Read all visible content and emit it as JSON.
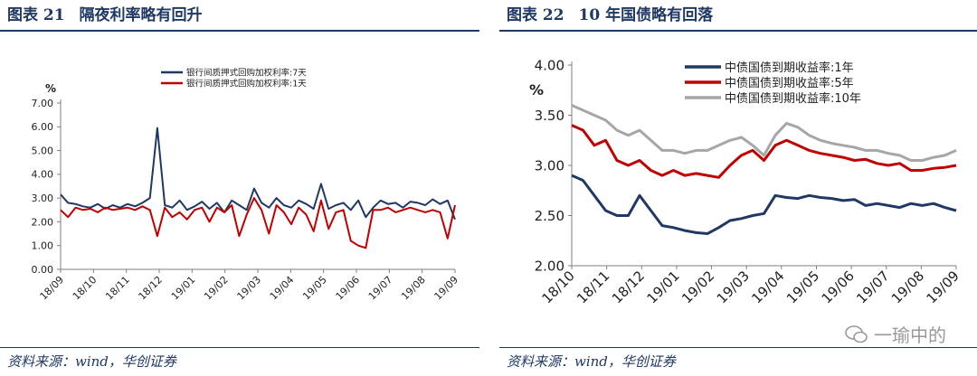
{
  "charts": [
    {
      "figure_label": "图表 21",
      "figure_title": "隔夜利率略有回升",
      "source": "资料来源：wind，华创证券",
      "unit_label": "%",
      "y_ticks": [
        "0.00",
        "1.00",
        "2.00",
        "3.00",
        "4.00",
        "5.00",
        "6.00",
        "7.00"
      ],
      "x_ticks": [
        "18/09",
        "18/10",
        "18/11",
        "18/12",
        "19/01",
        "19/02",
        "19/03",
        "19/04",
        "19/05",
        "19/06",
        "19/07",
        "19/08",
        "19/09"
      ],
      "legend": [
        {
          "label": "银行间质押式回购加权利率:7天",
          "color": "#1f3864"
        },
        {
          "label": "银行间质押式回购加权利率:1天",
          "color": "#c00000"
        }
      ]
    },
    {
      "figure_label": "图表 22",
      "figure_title": "10 年国债略有回落",
      "source": "资料来源：wind，华创证券",
      "unit_label": "%",
      "y_ticks": [
        "2.00",
        "2.50",
        "3.00",
        "3.50",
        "4.00"
      ],
      "x_ticks": [
        "18/10",
        "18/11",
        "18/12",
        "19/01",
        "19/02",
        "19/03",
        "19/04",
        "19/05",
        "19/06",
        "19/07",
        "19/08",
        "19/09"
      ],
      "legend": [
        {
          "label": "中债国债到期收益率:1年",
          "color": "#1f3864"
        },
        {
          "label": "中债国债到期收益率:5年",
          "color": "#c00000"
        },
        {
          "label": "中债国债到期收益率:10年",
          "color": "#a6a6a6"
        }
      ]
    }
  ],
  "watermark": "一瑜中的",
  "chart_data": [
    {
      "type": "line",
      "ylim": [
        0,
        7
      ],
      "x": [
        "18/09",
        "18/09",
        "18/09",
        "18/10",
        "18/10",
        "18/10",
        "18/10",
        "18/11",
        "18/11",
        "18/11",
        "18/11",
        "18/11",
        "18/12",
        "18/12",
        "18/12",
        "18/12",
        "19/01",
        "19/01",
        "19/01",
        "19/01",
        "19/01",
        "19/02",
        "19/02",
        "19/02",
        "19/02",
        "19/03",
        "19/03",
        "19/03",
        "19/03",
        "19/03",
        "19/04",
        "19/04",
        "19/04",
        "19/04",
        "19/05",
        "19/05",
        "19/05",
        "19/05",
        "19/05",
        "19/06",
        "19/06",
        "19/06",
        "19/06",
        "19/07",
        "19/07",
        "19/07",
        "19/07",
        "19/07",
        "19/08",
        "19/08",
        "19/08",
        "19/08",
        "19/09",
        "19/09"
      ],
      "series": [
        {
          "name": "银行间质押式回购加权利率:7天",
          "values": [
            3.15,
            2.8,
            2.75,
            2.65,
            2.6,
            2.75,
            2.55,
            2.7,
            2.6,
            2.75,
            2.65,
            2.8,
            3.0,
            5.95,
            2.7,
            2.6,
            2.9,
            2.5,
            2.65,
            2.85,
            2.55,
            2.8,
            2.4,
            2.9,
            2.7,
            2.5,
            3.4,
            2.8,
            2.6,
            3.0,
            2.7,
            2.6,
            2.9,
            2.75,
            2.55,
            3.6,
            2.55,
            2.7,
            2.8,
            2.5,
            2.9,
            2.2,
            2.6,
            2.9,
            2.75,
            2.8,
            2.6,
            2.85,
            2.8,
            2.7,
            2.95,
            2.75,
            2.9,
            2.1
          ]
        },
        {
          "name": "银行间质押式回购加权利率:1天",
          "values": [
            2.5,
            2.2,
            2.6,
            2.5,
            2.55,
            2.4,
            2.6,
            2.5,
            2.55,
            2.6,
            2.5,
            2.65,
            2.5,
            1.4,
            2.6,
            2.2,
            2.4,
            2.1,
            2.5,
            2.6,
            2.0,
            2.6,
            2.4,
            2.7,
            1.4,
            2.3,
            3.0,
            2.5,
            1.5,
            2.7,
            2.4,
            1.9,
            2.6,
            2.3,
            1.6,
            2.9,
            1.7,
            2.4,
            2.5,
            1.2,
            1.0,
            0.9,
            2.5,
            2.5,
            2.6,
            2.4,
            2.5,
            2.6,
            2.5,
            2.4,
            2.5,
            2.4,
            1.3,
            2.7
          ]
        }
      ]
    },
    {
      "type": "line",
      "ylim": [
        2.0,
        4.0
      ],
      "x": [
        "18/10",
        "18/10",
        "18/10",
        "18/11",
        "18/11",
        "18/11",
        "18/12",
        "18/12",
        "18/12",
        "19/01",
        "19/01",
        "19/01",
        "19/02",
        "19/02",
        "19/02",
        "19/03",
        "19/03",
        "19/03",
        "19/04",
        "19/04",
        "19/04",
        "19/05",
        "19/05",
        "19/05",
        "19/06",
        "19/06",
        "19/06",
        "19/07",
        "19/07",
        "19/07",
        "19/08",
        "19/08",
        "19/08",
        "19/09",
        "19/09"
      ],
      "series": [
        {
          "name": "中债国债到期收益率:1年",
          "values": [
            2.9,
            2.85,
            2.7,
            2.55,
            2.5,
            2.5,
            2.7,
            2.55,
            2.4,
            2.38,
            2.35,
            2.33,
            2.32,
            2.38,
            2.45,
            2.47,
            2.5,
            2.52,
            2.7,
            2.68,
            2.67,
            2.7,
            2.68,
            2.67,
            2.65,
            2.66,
            2.6,
            2.62,
            2.6,
            2.58,
            2.62,
            2.6,
            2.62,
            2.58,
            2.55
          ]
        },
        {
          "name": "中债国债到期收益率:5年",
          "values": [
            3.4,
            3.35,
            3.2,
            3.25,
            3.05,
            3.0,
            3.05,
            2.95,
            2.9,
            2.95,
            2.9,
            2.92,
            2.9,
            2.88,
            3.0,
            3.1,
            3.15,
            3.05,
            3.2,
            3.25,
            3.2,
            3.15,
            3.12,
            3.1,
            3.08,
            3.05,
            3.06,
            3.02,
            3.0,
            3.02,
            2.95,
            2.95,
            2.97,
            2.98,
            3.0
          ]
        },
        {
          "name": "中债国债到期收益率:10年",
          "values": [
            3.6,
            3.55,
            3.5,
            3.45,
            3.35,
            3.3,
            3.35,
            3.25,
            3.15,
            3.15,
            3.12,
            3.15,
            3.15,
            3.2,
            3.25,
            3.28,
            3.2,
            3.1,
            3.3,
            3.42,
            3.38,
            3.3,
            3.25,
            3.22,
            3.2,
            3.18,
            3.15,
            3.15,
            3.12,
            3.1,
            3.05,
            3.05,
            3.08,
            3.1,
            3.15
          ]
        }
      ]
    }
  ]
}
